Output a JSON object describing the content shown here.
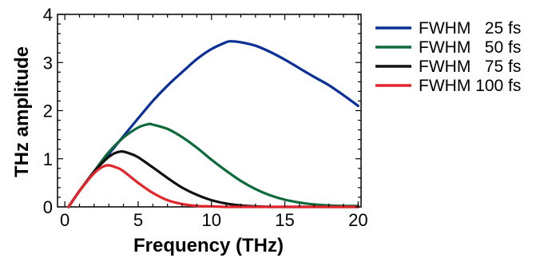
{
  "chart_data": {
    "type": "line",
    "title": "",
    "xlabel": "Frequency (THz)",
    "ylabel": "THz amplitude",
    "xlim": [
      -0.5,
      20.2
    ],
    "ylim": [
      0,
      4
    ],
    "xticks": [
      0,
      5,
      10,
      15,
      20
    ],
    "yticks": [
      0,
      1,
      2,
      3,
      4
    ],
    "legend_position": "outside-right-top",
    "grid": false,
    "series": [
      {
        "name": "FWHM   25 fs",
        "color": "#0a2f96",
        "x": [
          0.25,
          1,
          2,
          3,
          4,
          5,
          6,
          7,
          8,
          9,
          10,
          11,
          11.3,
          12,
          13,
          14,
          15,
          16,
          17,
          18,
          19,
          20
        ],
        "y": [
          0.0,
          0.33,
          0.72,
          1.1,
          1.47,
          1.84,
          2.2,
          2.52,
          2.8,
          3.07,
          3.28,
          3.42,
          3.44,
          3.42,
          3.35,
          3.22,
          3.06,
          2.88,
          2.7,
          2.53,
          2.32,
          2.1
        ]
      },
      {
        "name": "FWHM   50 fs",
        "color": "#0e6a3a",
        "x": [
          0.25,
          1,
          2,
          3,
          4,
          5,
          5.7,
          6,
          7,
          8,
          9,
          10,
          11,
          12,
          13,
          14,
          15,
          16,
          17,
          18,
          19,
          20
        ],
        "y": [
          0.0,
          0.33,
          0.74,
          1.14,
          1.44,
          1.65,
          1.72,
          1.71,
          1.62,
          1.45,
          1.23,
          0.98,
          0.75,
          0.54,
          0.37,
          0.24,
          0.15,
          0.09,
          0.05,
          0.03,
          0.02,
          0.02
        ]
      },
      {
        "name": "FWHM   75 fs",
        "color": "#111111",
        "x": [
          0.25,
          1,
          2,
          3,
          3.8,
          4.5,
          5,
          6,
          7,
          8,
          9,
          10,
          11,
          12,
          13,
          14,
          15,
          16,
          17,
          18,
          19,
          20
        ],
        "y": [
          0.0,
          0.33,
          0.73,
          1.04,
          1.15,
          1.1,
          1.03,
          0.82,
          0.6,
          0.4,
          0.25,
          0.14,
          0.07,
          0.03,
          0.01,
          0.0,
          0.0,
          0.0,
          0.0,
          0.0,
          0.0,
          0.0
        ]
      },
      {
        "name": "FWHM 100 fs",
        "color": "#e3262c",
        "x": [
          0.25,
          1,
          2,
          2.8,
          3.5,
          4,
          5,
          6,
          7,
          8,
          9,
          10,
          11,
          12,
          13,
          14,
          15,
          16,
          17,
          18,
          19,
          20
        ],
        "y": [
          0.0,
          0.33,
          0.7,
          0.86,
          0.82,
          0.74,
          0.5,
          0.29,
          0.14,
          0.06,
          0.02,
          0.01,
          0.0,
          0.0,
          0.0,
          0.0,
          0.0,
          0.0,
          0.0,
          0.0,
          0.0,
          0.0
        ]
      }
    ]
  }
}
